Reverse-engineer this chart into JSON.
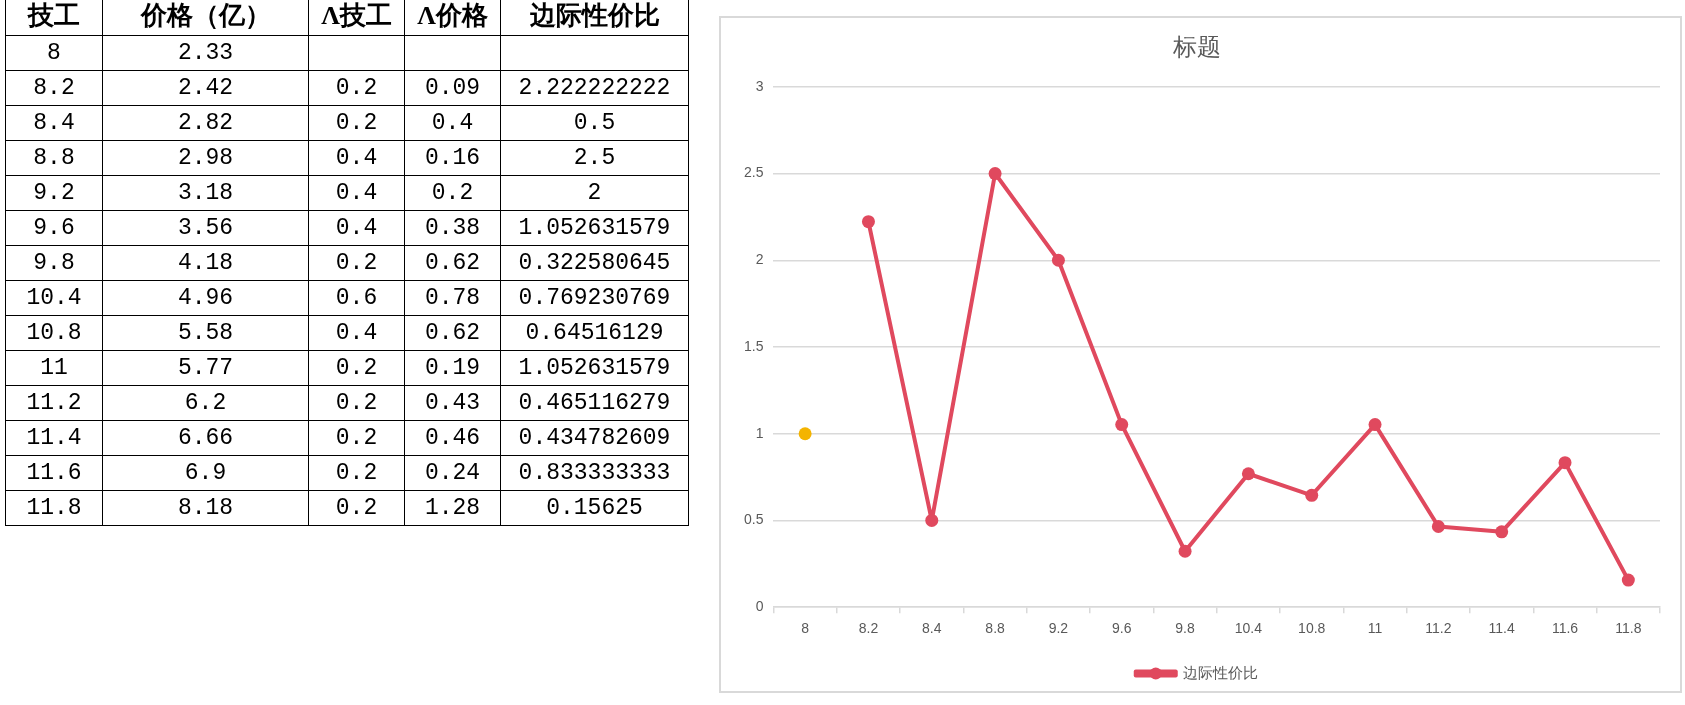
{
  "chart_data": [
    {
      "type": "other",
      "xlabel": "技工",
      "categories": [
        "8",
        "8.2",
        "8.4",
        "8.8",
        "9.2",
        "9.6",
        "9.8",
        "10.4",
        "10.8",
        "11",
        "11.2",
        "11.4",
        "11.6",
        "11.8"
      ],
      "series": [
        {
          "name": "价格（亿）",
          "values": [
            2.33,
            2.42,
            2.82,
            2.98,
            3.18,
            3.56,
            4.18,
            4.96,
            5.58,
            5.77,
            6.2,
            6.66,
            6.9,
            8.18
          ]
        },
        {
          "name": "Λ技工",
          "values": [
            null,
            0.2,
            0.2,
            0.4,
            0.4,
            0.4,
            0.2,
            0.6,
            0.4,
            0.2,
            0.2,
            0.2,
            0.2,
            0.2
          ]
        },
        {
          "name": "Λ价格",
          "values": [
            null,
            0.09,
            0.4,
            0.16,
            0.2,
            0.38,
            0.62,
            0.78,
            0.62,
            0.19,
            0.43,
            0.46,
            0.24,
            1.28
          ]
        },
        {
          "name": "边际性价比",
          "values": [
            null,
            2.222222222,
            0.5,
            2.5,
            2,
            1.052631579,
            0.322580645,
            0.769230769,
            0.64516129,
            1.052631579,
            0.465116279,
            0.434782609,
            0.833333333,
            0.15625
          ]
        }
      ],
      "data_labels": true
    },
    {
      "type": "line",
      "title": "标题",
      "categories": [
        "8",
        "8.2",
        "8.4",
        "8.8",
        "9.2",
        "9.6",
        "9.8",
        "10.4",
        "10.8",
        "11",
        "11.2",
        "11.4",
        "11.6",
        "11.8"
      ],
      "series": [
        {
          "name": "边际性价比",
          "color": "#e0495e",
          "values": [
            null,
            2.222222222,
            0.5,
            2.5,
            2,
            1.052631579,
            0.322580645,
            0.769230769,
            0.64516129,
            1.052631579,
            0.465116279,
            0.434782609,
            0.833333333,
            0.15625
          ]
        },
        {
          "color": "#f4b400",
          "values": [
            1,
            null,
            null,
            null,
            null,
            null,
            null,
            null,
            null,
            null,
            null,
            null,
            null,
            null
          ]
        }
      ],
      "ylim": [
        0,
        3
      ],
      "yticks": [
        0,
        0.5,
        1,
        1.5,
        2,
        2.5,
        3
      ],
      "grid": "y",
      "legend": "bottom",
      "marker": "circle",
      "line_style": "solid"
    }
  ]
}
